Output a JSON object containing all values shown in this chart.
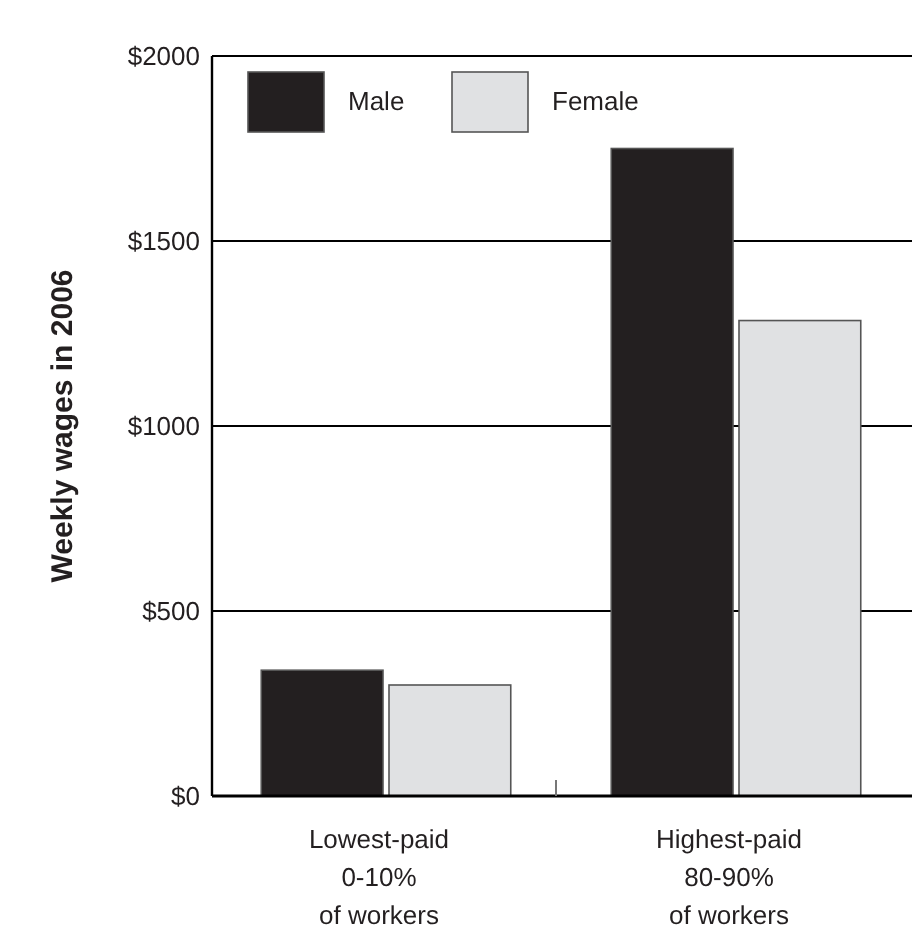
{
  "chart_data": {
    "type": "bar",
    "ylabel": "Weekly wages in 2006",
    "categories": [
      "Lowest-paid\n0-10%\nof workers",
      "Highest-paid\n80-90%\nof workers"
    ],
    "series": [
      {
        "name": "Male",
        "color": "#231f20",
        "values": [
          340,
          1750
        ]
      },
      {
        "name": "Female",
        "color": "#e0e1e3",
        "values": [
          300,
          1285
        ]
      }
    ],
    "ylim": [
      0,
      2000
    ],
    "yticks": [
      {
        "value": 0,
        "label": "$0"
      },
      {
        "value": 500,
        "label": "$500"
      },
      {
        "value": 1000,
        "label": "$1000"
      },
      {
        "value": 1500,
        "label": "$1500"
      },
      {
        "value": 2000,
        "label": "$2000"
      }
    ],
    "grid": "y",
    "legend": "top left"
  }
}
